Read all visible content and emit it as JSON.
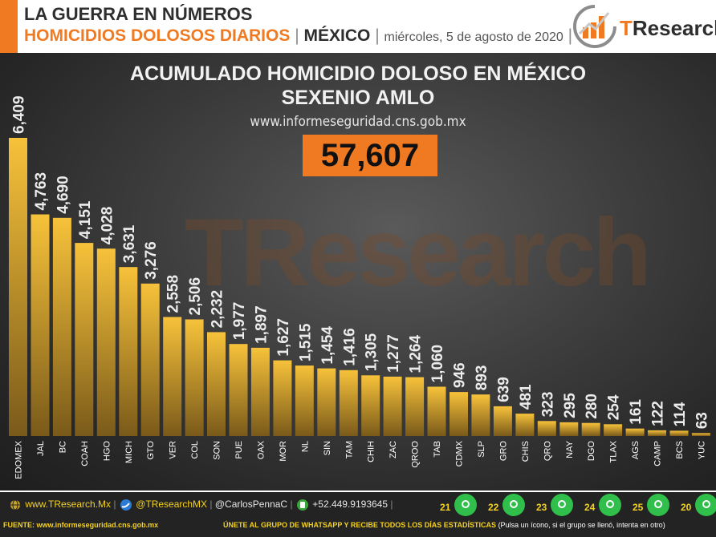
{
  "header": {
    "line1": "LA GUERRA EN NÚMEROS",
    "line2_heading": "HOMICIDIOS DOLOSOS DIARIOS",
    "separator": "|",
    "country": "MÉXICO",
    "date": "miércoles, 5 de agosto de 2020",
    "logo_t": "T",
    "logo_rest": "Research"
  },
  "watermark": "TResearch",
  "chart_data": {
    "type": "bar",
    "title": "ACUMULADO HOMICIDIO DOLOSO EN MÉXICO",
    "subtitle": "SEXENIO AMLO",
    "source_line": "www.informeseguridad.cns.gob.mx",
    "total": "57,607",
    "categories": [
      "EDOMEX",
      "JAL",
      "BC",
      "COAH",
      "HGO",
      "MICH",
      "GTO",
      "VER",
      "COL",
      "SON",
      "PUE",
      "OAX",
      "MOR",
      "NL",
      "SIN",
      "TAM",
      "CHIH",
      "ZAC",
      "QROO",
      "TAB",
      "CDMX",
      "SLP",
      "GRO",
      "CHIS",
      "QRO",
      "NAY",
      "DGO",
      "TLAX",
      "AGS",
      "CAMP",
      "BCS",
      "YUC"
    ],
    "values": [
      6409,
      4763,
      4690,
      4151,
      4028,
      3631,
      3276,
      2558,
      2506,
      2232,
      1977,
      1897,
      1627,
      1515,
      1454,
      1416,
      1305,
      1277,
      1264,
      1060,
      946,
      893,
      639,
      481,
      323,
      295,
      280,
      254,
      161,
      122,
      114,
      63
    ],
    "value_labels": [
      "6,409",
      "4,763",
      "4,690",
      "4,151",
      "4,028",
      "3,631",
      "3,276",
      "2,558",
      "2,506",
      "2,232",
      "1,977",
      "1,897",
      "1,627",
      "1,515",
      "1,454",
      "1,416",
      "1,305",
      "1,277",
      "1,264",
      "1,060",
      "946",
      "893",
      "639",
      "481",
      "323",
      "295",
      "280",
      "254",
      "161",
      "122",
      "114",
      "63"
    ],
    "ylim": [
      0,
      6409
    ],
    "grid": false,
    "bar_color_top": "#f7c23a",
    "bar_color_bottom": "#7a5a1a"
  },
  "footer": {
    "website": "www.TResearch.Mx",
    "twitter": "@TResearchMX",
    "handle": "@CarlosPennaC",
    "phone": "+52.449.9193645",
    "sep": "|",
    "source": "FUENTE: www.informeseguridad.cns.gob.mx",
    "join": "ÚNETE AL GRUPO DE WHATSAPP Y RECIBE TODOS LOS DÍAS ESTADÍSTICAS",
    "join_note": "(Pulsa un ícono, si el grupo se llenó, intenta en otro)",
    "groups": [
      "21",
      "22",
      "23",
      "24",
      "25",
      "20"
    ]
  },
  "colors": {
    "accent": "#f07a22",
    "yellow": "#f5d21c",
    "whatsapp": "#2fbf4a"
  },
  "icons": [
    "globe-icon",
    "twitter-icon",
    "phone-icon",
    "whatsapp-icon"
  ]
}
